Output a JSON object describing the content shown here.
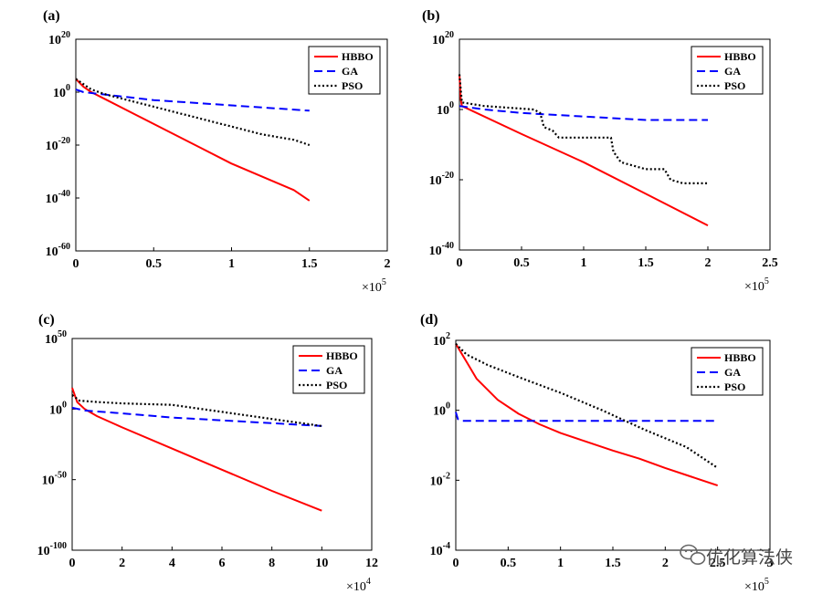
{
  "watermark": {
    "text": "优化算法侠",
    "icon": "wechat-icon"
  },
  "chart_data": [
    {
      "type": "line",
      "panel_label": "(a)",
      "log_y": true,
      "xlim": [
        0,
        200000
      ],
      "ylim_exponent": [
        -60,
        20
      ],
      "x_ticks": [
        "0",
        "0.5",
        "1",
        "1.5",
        "2"
      ],
      "x_multiplier_base": "×10",
      "x_multiplier_exp": "5",
      "y_ticks": [
        {
          "base": "10",
          "exp": "20"
        },
        {
          "base": "10",
          "exp": "0"
        },
        {
          "base": "10",
          "exp": "-20"
        },
        {
          "base": "10",
          "exp": "-40"
        },
        {
          "base": "10",
          "exp": "-60"
        }
      ],
      "legend": [
        "HBBO",
        "GA",
        "PSO"
      ],
      "legend_position": "top-right",
      "series": [
        {
          "name": "HBBO",
          "color": "#ff0000",
          "style": "solid",
          "x": [
            0,
            5000,
            10000,
            20000,
            40000,
            60000,
            80000,
            100000,
            120000,
            140000,
            150000
          ],
          "y": [
            5,
            2,
            0,
            -3,
            -9,
            -15,
            -21,
            -27,
            -32,
            -37,
            -41
          ]
        },
        {
          "name": "GA",
          "color": "#0000ff",
          "style": "dashed",
          "x": [
            0,
            5000,
            20000,
            50000,
            100000,
            150000
          ],
          "y": [
            1,
            0,
            -1,
            -3,
            -5,
            -7
          ]
        },
        {
          "name": "PSO",
          "color": "#000000",
          "style": "dotted",
          "x": [
            0,
            5000,
            10000,
            20000,
            40000,
            60000,
            80000,
            100000,
            120000,
            140000,
            150000
          ],
          "y": [
            5,
            3,
            1,
            -1,
            -4,
            -7,
            -10,
            -13,
            -16,
            -18,
            -20
          ]
        }
      ]
    },
    {
      "type": "line",
      "panel_label": "(b)",
      "log_y": true,
      "xlim": [
        0,
        250000
      ],
      "ylim_exponent": [
        -40,
        20
      ],
      "x_ticks": [
        "0",
        "0.5",
        "1",
        "1.5",
        "2",
        "2.5"
      ],
      "x_multiplier_base": "×10",
      "x_multiplier_exp": "5",
      "y_ticks": [
        {
          "base": "10",
          "exp": "20"
        },
        {
          "base": "10",
          "exp": "0"
        },
        {
          "base": "10",
          "exp": "-20"
        },
        {
          "base": "10",
          "exp": "-40"
        }
      ],
      "legend": [
        "HBBO",
        "GA",
        "PSO"
      ],
      "legend_position": "top-right",
      "series": [
        {
          "name": "HBBO",
          "color": "#ff0000",
          "style": "solid",
          "x": [
            0,
            1000,
            2000,
            50000,
            100000,
            150000,
            200000
          ],
          "y": [
            10,
            3,
            1,
            -7,
            -15,
            -24,
            -33
          ]
        },
        {
          "name": "GA",
          "color": "#0000ff",
          "style": "dashed",
          "x": [
            0,
            20000,
            50000,
            100000,
            150000,
            200000
          ],
          "y": [
            1,
            0,
            -1,
            -2,
            -3,
            -3
          ]
        },
        {
          "name": "PSO",
          "color": "#000000",
          "style": "dotted",
          "x": [
            0,
            2000,
            20000,
            60000,
            65000,
            68000,
            75000,
            80000,
            100000,
            115000,
            122000,
            124000,
            130000,
            140000,
            150000,
            160000,
            165000,
            170000,
            180000,
            200000
          ],
          "y": [
            10,
            2,
            1,
            0,
            -1,
            -5,
            -6,
            -8,
            -8,
            -8,
            -8,
            -12,
            -15,
            -16,
            -17,
            -17,
            -17,
            -20,
            -21,
            -21
          ]
        }
      ]
    },
    {
      "type": "line",
      "panel_label": "(c)",
      "log_y": true,
      "xlim": [
        0,
        120000
      ],
      "ylim_exponent": [
        -100,
        50
      ],
      "x_ticks": [
        "0",
        "2",
        "4",
        "6",
        "8",
        "10",
        "12"
      ],
      "x_multiplier_base": "×10",
      "x_multiplier_exp": "4",
      "y_ticks": [
        {
          "base": "10",
          "exp": "50"
        },
        {
          "base": "10",
          "exp": "0"
        },
        {
          "base": "10",
          "exp": "-50"
        },
        {
          "base": "10",
          "exp": "-100"
        }
      ],
      "legend": [
        "HBBO",
        "GA",
        "PSO"
      ],
      "legend_position": "top-right",
      "series": [
        {
          "name": "HBBO",
          "color": "#ff0000",
          "style": "solid",
          "x": [
            0,
            2000,
            5000,
            10000,
            20000,
            40000,
            60000,
            80000,
            100000
          ],
          "y": [
            15,
            5,
            0,
            -5,
            -13,
            -28,
            -43,
            -58,
            -72
          ]
        },
        {
          "name": "GA",
          "color": "#0000ff",
          "style": "dashed",
          "x": [
            0,
            5000,
            20000,
            40000,
            60000,
            80000,
            100000
          ],
          "y": [
            1,
            -1,
            -3,
            -6,
            -8,
            -10,
            -12
          ]
        },
        {
          "name": "PSO",
          "color": "#000000",
          "style": "dotted",
          "x": [
            0,
            3000,
            10000,
            20000,
            40000,
            60000,
            80000,
            100000
          ],
          "y": [
            10,
            6,
            5,
            4,
            3,
            -2,
            -7,
            -12
          ]
        }
      ]
    },
    {
      "type": "line",
      "panel_label": "(d)",
      "log_y": true,
      "xlim": [
        0,
        300000
      ],
      "ylim_exponent": [
        -4,
        2
      ],
      "x_ticks": [
        "0",
        "0.5",
        "1",
        "1.5",
        "2",
        "2.5",
        "3"
      ],
      "x_multiplier_base": "×10",
      "x_multiplier_exp": "5",
      "y_ticks": [
        {
          "base": "10",
          "exp": "2"
        },
        {
          "base": "10",
          "exp": "0"
        },
        {
          "base": "10",
          "exp": "-2"
        },
        {
          "base": "10",
          "exp": "-4"
        }
      ],
      "legend": [
        "HBBO",
        "GA",
        "PSO"
      ],
      "legend_position": "top-right",
      "series": [
        {
          "name": "HBBO",
          "color": "#ff0000",
          "style": "solid",
          "x": [
            0,
            10000,
            20000,
            40000,
            60000,
            80000,
            100000,
            125000,
            150000,
            175000,
            200000,
            225000,
            250000
          ],
          "y": [
            1.9,
            1.4,
            0.9,
            0.3,
            -0.1,
            -0.4,
            -0.65,
            -0.9,
            -1.15,
            -1.38,
            -1.65,
            -1.9,
            -2.15
          ]
        },
        {
          "name": "GA",
          "color": "#0000ff",
          "style": "dashed",
          "x": [
            0,
            2000,
            5000,
            50000,
            100000,
            150000,
            200000,
            250000
          ],
          "y": [
            -0.05,
            -0.25,
            -0.3,
            -0.3,
            -0.3,
            -0.3,
            -0.3,
            -0.3
          ]
        },
        {
          "name": "PSO",
          "color": "#000000",
          "style": "dotted",
          "x": [
            0,
            10000,
            30000,
            60000,
            100000,
            140000,
            180000,
            220000,
            250000
          ],
          "y": [
            1.9,
            1.6,
            1.3,
            0.95,
            0.5,
            0.0,
            -0.55,
            -1.05,
            -1.65
          ]
        }
      ]
    }
  ]
}
